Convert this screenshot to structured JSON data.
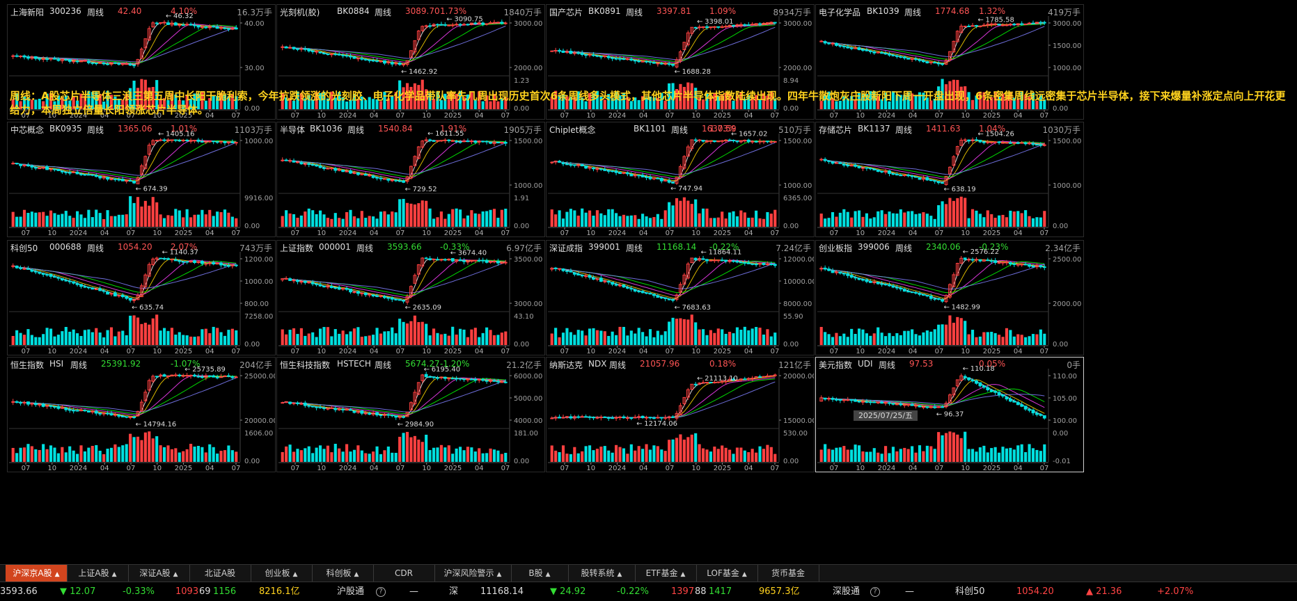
{
  "overlay_text": "周线：A股芯片半导体三浪三第五周中长阳干脆利索，今年抗跌领涨的光刻胶、电子化学品带队率先几周出现历史首次6条周线多头模式，其他芯片半导体指数陆续出现。四年牛散炮灰庄股新阳下周一开盘出现，6条密集周线远密集于芯片半导体，接下来爆量补涨定点向上开花更给力，本周独立倍量长阳领涨芯片半导体。",
  "cursor_date": "2025/07/25/五",
  "colors": {
    "up": "#ff4040",
    "down": "#00e0e0",
    "ma5": "#ffffff",
    "ma10": "#ffd700",
    "ma20": "#ff40ff",
    "ma30": "#00ff00",
    "ma60": "#8080ff",
    "ma120": "#00c0ff"
  },
  "panels": [
    {
      "name": "上海新阳",
      "code": "300236",
      "period": "周线",
      "price": "42.40",
      "change": "4.10%",
      "dir": "up",
      "volume": "16.3万手",
      "price_ticks": [
        "40.00",
        "30.00"
      ],
      "vol_ticks": [
        "",
        "0.00"
      ],
      "x_ticks": [
        "07",
        "10",
        "2024",
        "04",
        "07",
        "10",
        "2025",
        "04",
        "07"
      ],
      "high_label": "46.32",
      "low_label": "",
      "kline": {
        "start": 30,
        "dip": 26,
        "peak": 45,
        "end": 42
      }
    },
    {
      "name": "光刻机(胶)",
      "code": "BK0884",
      "period": "周线",
      "price": "3089.70",
      "change": "1.73%",
      "dir": "up",
      "volume": "1840万手",
      "price_ticks": [
        "3000.00",
        "2000.00"
      ],
      "vol_ticks": [
        "1.23",
        "0.00"
      ],
      "x_ticks": [
        "07",
        "10",
        "2024",
        "04",
        "07",
        "10",
        "2025",
        "04",
        "07"
      ],
      "high_label": "3090.75",
      "low_label": "1462.92",
      "kline": {
        "start": 2200,
        "dip": 1500,
        "peak": 3000,
        "end": 3090
      }
    },
    {
      "name": "国产芯片",
      "code": "BK0891",
      "period": "周线",
      "price": "3397.81",
      "change": "1.09%",
      "dir": "up",
      "volume": "8934万手",
      "price_ticks": [
        "3000.00",
        "2000.00"
      ],
      "vol_ticks": [
        "8.94",
        "0.00"
      ],
      "x_ticks": [
        "07",
        "10",
        "2024",
        "04",
        "07",
        "10",
        "2025",
        "04",
        "07"
      ],
      "high_label": "3398.01",
      "low_label": "1688.28",
      "kline": {
        "start": 2300,
        "dip": 1700,
        "peak": 3200,
        "end": 3398
      }
    },
    {
      "name": "电子化学品",
      "code": "BK1039",
      "period": "周线",
      "price": "1774.68",
      "change": "1.32%",
      "dir": "up",
      "volume": "419万手",
      "price_ticks": [
        "3000.00",
        "1500.00",
        "1000.00"
      ],
      "vol_ticks": [
        "",
        "0.00"
      ],
      "x_ticks": [
        "07",
        "10",
        "2024",
        "04",
        "07",
        "10",
        "2025",
        "04",
        "07"
      ],
      "high_label": "1785.58",
      "low_label": "",
      "kline": {
        "start": 1400,
        "dip": 950,
        "peak": 1700,
        "end": 1774
      }
    },
    {
      "name": "中芯概念",
      "code": "BK0935",
      "period": "周线",
      "price": "1365.06",
      "change": "1.01%",
      "dir": "up",
      "volume": "1103万手",
      "price_ticks": [
        "1000.00"
      ],
      "vol_ticks": [
        "9916.00",
        "0.00"
      ],
      "x_ticks": [
        "07",
        "10",
        "2024",
        "04",
        "07",
        "10",
        "2025",
        "04",
        "07"
      ],
      "high_label": "1405.16",
      "low_label": "674.39",
      "kline": {
        "start": 1000,
        "dip": 674,
        "peak": 1405,
        "end": 1365
      }
    },
    {
      "name": "半导体",
      "code": "BK1036",
      "period": "周线",
      "price": "1540.84",
      "change": "1.91%",
      "dir": "up",
      "volume": "1905万手",
      "price_ticks": [
        "1500.00",
        "1000.00"
      ],
      "vol_ticks": [
        "1.91",
        "0.00"
      ],
      "x_ticks": [
        "07",
        "10",
        "2024",
        "04",
        "07",
        "10",
        "2025",
        "04",
        "07"
      ],
      "high_label": "1611.55",
      "low_label": "729.52",
      "kline": {
        "start": 1200,
        "dip": 729,
        "peak": 1611,
        "end": 1540
      }
    },
    {
      "name": "Chiplet概念",
      "code": "BK1101",
      "period": "周线",
      "price": "1630.59",
      "change": "1.73%",
      "dir": "up",
      "volume": "510万手",
      "price_ticks": [
        "1500.00",
        "1000.00"
      ],
      "vol_ticks": [
        "6365.00",
        "0.00"
      ],
      "x_ticks": [
        "07",
        "10",
        "2024",
        "04",
        "07",
        "10",
        "2025",
        "04",
        "07"
      ],
      "high_label": "1657.02",
      "low_label": "747.94",
      "kline": {
        "start": 1200,
        "dip": 747,
        "peak": 1657,
        "end": 1630
      }
    },
    {
      "name": "存储芯片",
      "code": "BK1137",
      "period": "周线",
      "price": "1411.63",
      "change": "1.04%",
      "dir": "up",
      "volume": "1030万手",
      "price_ticks": [
        "1500.00",
        "1000.00"
      ],
      "vol_ticks": [
        "",
        "0.00"
      ],
      "x_ticks": [
        "07",
        "10",
        "2024",
        "04",
        "07",
        "10",
        "2025",
        "04",
        "07"
      ],
      "high_label": "1504.26",
      "low_label": "638.19",
      "kline": {
        "start": 1100,
        "dip": 638,
        "peak": 1504,
        "end": 1411
      }
    },
    {
      "name": "科创50",
      "code": "000688",
      "period": "周线",
      "price": "1054.20",
      "change": "2.07%",
      "dir": "up",
      "volume": "743万手",
      "price_ticks": [
        "1200.00",
        "1000.00",
        "800.00"
      ],
      "vol_ticks": [
        "7258.00",
        "0.00"
      ],
      "x_ticks": [
        "07",
        "10",
        "2024",
        "04",
        "07",
        "10",
        "2025",
        "04",
        "07"
      ],
      "high_label": "1140.37",
      "low_label": "635.74",
      "kline": {
        "start": 1050,
        "dip": 635,
        "peak": 1140,
        "end": 1054
      }
    },
    {
      "name": "上证指数",
      "code": "000001",
      "period": "周线",
      "price": "3593.66",
      "change": "-0.33%",
      "dir": "down",
      "volume": "6.97亿手",
      "price_ticks": [
        "3500.00",
        "3000.00"
      ],
      "vol_ticks": [
        "43.10",
        "0.00"
      ],
      "x_ticks": [
        "07",
        "10",
        "2024",
        "04",
        "07",
        "10",
        "2025",
        "04",
        "07"
      ],
      "high_label": "3674.40",
      "low_label": "2635.09",
      "kline": {
        "start": 3200,
        "dip": 2635,
        "peak": 3674,
        "end": 3593
      }
    },
    {
      "name": "深证成指",
      "code": "399001",
      "period": "周线",
      "price": "11168.14",
      "change": "-0.22%",
      "dir": "down",
      "volume": "7.24亿手",
      "price_ticks": [
        "12000.00",
        "10000.00",
        "8000.00"
      ],
      "vol_ticks": [
        "55.90",
        "0.00"
      ],
      "x_ticks": [
        "07",
        "10",
        "2024",
        "04",
        "07",
        "10",
        "2025",
        "04",
        "07"
      ],
      "high_label": "11864.11",
      "low_label": "7683.63",
      "kline": {
        "start": 11000,
        "dip": 7683,
        "peak": 11864,
        "end": 11168
      }
    },
    {
      "name": "创业板指",
      "code": "399006",
      "period": "周线",
      "price": "2340.06",
      "change": "-0.23%",
      "dir": "down",
      "volume": "2.34亿手",
      "price_ticks": [
        "2500.00",
        "2000.00"
      ],
      "vol_ticks": [
        "",
        "0.00"
      ],
      "x_ticks": [
        "07",
        "10",
        "2024",
        "04",
        "07",
        "10",
        "2025",
        "04",
        "07"
      ],
      "high_label": "2576.22",
      "low_label": "1482.99",
      "kline": {
        "start": 2300,
        "dip": 1482,
        "peak": 2576,
        "end": 2340
      }
    },
    {
      "name": "恒生指数",
      "code": "HSI",
      "period": "周线",
      "price": "25391.92",
      "change": "-1.07%",
      "dir": "down",
      "volume": "204亿手",
      "price_ticks": [
        "25000.00",
        "20000.00"
      ],
      "vol_ticks": [
        "1606.00",
        "0.00"
      ],
      "x_ticks": [
        "07",
        "10",
        "2024",
        "04",
        "07",
        "10",
        "2025",
        "04",
        "07"
      ],
      "high_label": "25735.89",
      "low_label": "14794.16",
      "kline": {
        "start": 19000,
        "dip": 14794,
        "peak": 25735,
        "end": 25391
      }
    },
    {
      "name": "恒生科技指数",
      "code": "HSTECH",
      "period": "周线",
      "price": "5674.27",
      "change": "-1.20%",
      "dir": "down",
      "volume": "21.2亿手",
      "price_ticks": [
        "6000.00",
        "5000.00",
        "4000.00"
      ],
      "vol_ticks": [
        "181.00",
        "0.00"
      ],
      "x_ticks": [
        "07",
        "10",
        "2024",
        "04",
        "07",
        "10",
        "2025",
        "04",
        "07"
      ],
      "high_label": "6195.40",
      "low_label": "2984.90",
      "kline": {
        "start": 4200,
        "dip": 2984,
        "peak": 6195,
        "end": 5674
      }
    },
    {
      "name": "纳斯达克",
      "code": "NDX",
      "period": "周线",
      "price": "21057.96",
      "change": "0.18%",
      "dir": "up",
      "volume": "121亿手",
      "price_ticks": [
        "20000.00",
        "15000.00"
      ],
      "vol_ticks": [
        "530.00",
        "0.00"
      ],
      "x_ticks": [
        "07",
        "10",
        "2024",
        "04",
        "07",
        "10",
        "2025",
        "04",
        "07"
      ],
      "high_label": "21113.10",
      "low_label": "12174.06",
      "kline": {
        "start": 12174,
        "dip": 12174,
        "peak": 19000,
        "end": 21057
      }
    },
    {
      "name": "美元指数",
      "code": "UDI",
      "period": "周线",
      "price": "97.53",
      "change": "0.05%",
      "dir": "up",
      "volume": "0手",
      "price_ticks": [
        "110.00",
        "105.00",
        "100.00"
      ],
      "vol_ticks": [
        "0.00",
        "-0.01"
      ],
      "x_ticks": [
        "07",
        "10",
        "2024",
        "04",
        "07",
        "10",
        "2025",
        "04",
        "07"
      ],
      "high_label": "110.18",
      "low_label": "96.37",
      "kline": {
        "start": 103,
        "dip": 100,
        "peak": 110,
        "end": 97
      }
    }
  ],
  "tabs": [
    {
      "label": "沪深京A股",
      "arrow": "▲",
      "active": true
    },
    {
      "label": "上证A股",
      "arrow": "▲"
    },
    {
      "label": "深证A股",
      "arrow": "▲"
    },
    {
      "label": "北证A股",
      "arrow": ""
    },
    {
      "label": "创业板",
      "arrow": "▲"
    },
    {
      "label": "科创板",
      "arrow": "▲"
    },
    {
      "label": "CDR",
      "arrow": ""
    },
    {
      "label": "沪深风险警示",
      "arrow": "▲"
    },
    {
      "label": "B股",
      "arrow": "▲"
    },
    {
      "label": "股转系统",
      "arrow": "▲"
    },
    {
      "label": "ETF基金",
      "arrow": "▲"
    },
    {
      "label": "LOF基金",
      "arrow": "▲"
    },
    {
      "label": "货币基金",
      "arrow": ""
    }
  ],
  "status": {
    "sh_index": "3593.66",
    "sh_change": "▼ 12.07",
    "sh_pct": "-0.33%",
    "sh_up": "1093",
    "sh_flat": "69",
    "sh_down": "1156",
    "sh_amount": "8216.1亿",
    "hgt_label": "沪股通",
    "hgt_value": "—",
    "sz_label": "深",
    "sz_index": "11168.14",
    "sz_change": "▼ 24.92",
    "sz_pct": "-0.22%",
    "sz_up": "1397",
    "sz_flat": "88",
    "sz_down": "1417",
    "sz_amount": "9657.3亿",
    "sgt_label": "深股通",
    "sgt_value": "—",
    "kc_label": "科创50",
    "kc_index": "1054.20",
    "kc_change": "▲ 21.36",
    "kc_pct": "+2.07%"
  }
}
